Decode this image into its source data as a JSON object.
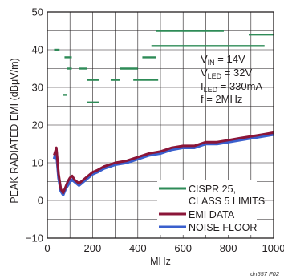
{
  "chart_data": {
    "type": "line",
    "xlabel": "MHz",
    "ylabel": "PEAK RADIATED EMI (dBμV/m)",
    "xlim": [
      0,
      1000
    ],
    "ylim": [
      -10,
      50
    ],
    "x_ticks": [
      "0",
      "200",
      "400",
      "600",
      "800",
      "1000"
    ],
    "y_ticks": [
      "50",
      "40",
      "30",
      "20",
      "10",
      "0",
      "−10"
    ],
    "grid": true,
    "legend_position": "bottom-right",
    "annotation": {
      "vin_main": "V",
      "vin_sub": "IN",
      "vin_val": " = 14V",
      "vled_main": "V",
      "vled_sub": "LED",
      "vled_val": " = 32V",
      "iled_main": "I",
      "iled_sub": "LED",
      "iled_val": " = 330mA",
      "freq": "f = 2MHz"
    },
    "footnote": "dn557 F02",
    "series": [
      {
        "name": "CISPR 25, CLASS 5 LIMITS",
        "label_line1": "CISPR 25,",
        "label_line2": "CLASS 5 LIMITS",
        "color": "#2e8b57",
        "segments": [
          {
            "x": [
              30,
              54
            ],
            "y": 40
          },
          {
            "x": [
              70,
              88
            ],
            "y": 28
          },
          {
            "x": [
              76,
              108
            ],
            "y": 38
          },
          {
            "x": [
              87,
              108
            ],
            "y": 35
          },
          {
            "x": [
              142,
              175
            ],
            "y": 35
          },
          {
            "x": [
              174,
              230
            ],
            "y": 32
          },
          {
            "x": [
              174,
              230
            ],
            "y": 26
          },
          {
            "x": [
              280,
              320
            ],
            "y": 32
          },
          {
            "x": [
              320,
              400
            ],
            "y": 35
          },
          {
            "x": [
              380,
              490
            ],
            "y": 32
          },
          {
            "x": [
              420,
              480
            ],
            "y": 38
          },
          {
            "x": [
              480,
              780
            ],
            "y": 45
          },
          {
            "x": [
              460,
              960
            ],
            "y": 41
          },
          {
            "x": [
              890,
              1000
            ],
            "y": 44
          }
        ]
      },
      {
        "name": "EMI DATA",
        "color": "#8b1538",
        "x": [
          30,
          40,
          50,
          60,
          70,
          80,
          90,
          100,
          110,
          120,
          140,
          160,
          180,
          200,
          220,
          250,
          300,
          350,
          400,
          450,
          500,
          550,
          600,
          650,
          700,
          750,
          800,
          850,
          900,
          950,
          1000
        ],
        "y": [
          12,
          14,
          7,
          3,
          2,
          3.5,
          5,
          6,
          6.5,
          5.5,
          4.5,
          5.5,
          6.5,
          7.5,
          8,
          9,
          10,
          10.5,
          11.5,
          12.5,
          13,
          14,
          14.5,
          14.5,
          15.5,
          15.5,
          16,
          16.5,
          17,
          17.5,
          18
        ]
      },
      {
        "name": "NOISE FLOOR",
        "color": "#3a5fcd",
        "x": [
          30,
          40,
          50,
          60,
          70,
          80,
          90,
          100,
          110,
          120,
          140,
          160,
          180,
          200,
          220,
          250,
          300,
          350,
          400,
          450,
          500,
          550,
          600,
          650,
          700,
          750,
          800,
          850,
          900,
          950,
          1000
        ],
        "y": [
          11,
          13,
          6,
          2.5,
          1.5,
          3,
          4,
          5,
          5.5,
          5,
          4,
          5,
          6,
          7,
          7.5,
          8.5,
          9.5,
          10,
          11,
          12,
          12.5,
          13.5,
          14,
          14,
          15,
          15,
          15.5,
          16,
          16.5,
          17,
          17.5
        ]
      }
    ]
  }
}
